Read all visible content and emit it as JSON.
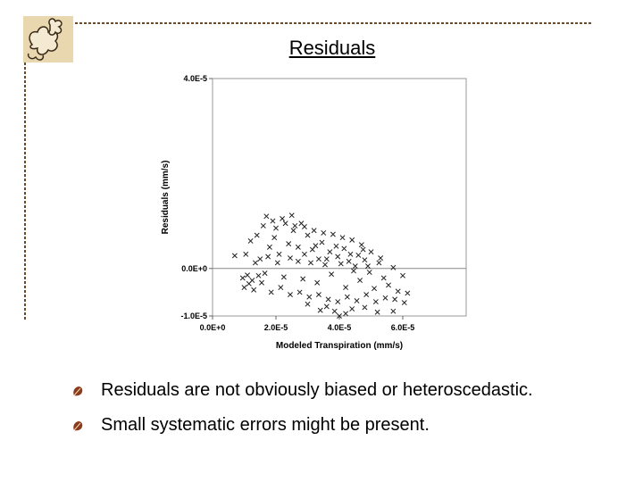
{
  "slide": {
    "title": "Residuals",
    "bullets": [
      "Residuals are not obviously biased or heteroscedastic.",
      "Small systematic errors might be present."
    ],
    "icons": {
      "logo": "leaf-cluster-logo",
      "bullet": "leaf-bullet-icon"
    },
    "colors": {
      "border": "#6b4a2a",
      "logo_fill": "#e9d7b0",
      "bullet": "#8a3b1e"
    }
  },
  "chart_data": {
    "type": "scatter",
    "xlabel": "Modeled Transpiration (mm/s)",
    "ylabel": "Residuals (mm/s)",
    "xlim": [
      0,
      8e-05
    ],
    "ylim": [
      -1e-05,
      4e-05
    ],
    "x_ticks": [
      0,
      2e-05,
      4e-05,
      6e-05
    ],
    "x_tick_labels": [
      "0.0E+0",
      "2.0E-5",
      "4.0E-5",
      "6.0E-5"
    ],
    "y_ticks": [
      -1e-05,
      0,
      4e-05
    ],
    "y_tick_labels": [
      "-1.0E-5",
      "0.0E+0",
      "4.0E-5"
    ],
    "zero_line": true,
    "grid": false,
    "marker": "x",
    "points": [
      [
        7e-06,
        2.7e-06
      ],
      [
        1.1e-05,
        -1.4e-06
      ],
      [
        1.35e-05,
        1.2e-06
      ],
      [
        1.5e-05,
        2e-06
      ],
      [
        1.65e-05,
        -1e-06
      ],
      [
        1.8e-05,
        4.5e-06
      ],
      [
        1.95e-05,
        6.5e-06
      ],
      [
        2.1e-05,
        3e-06
      ],
      [
        2.25e-05,
        -1.8e-06
      ],
      [
        2.4e-05,
        5.2e-06
      ],
      [
        2.55e-05,
        8e-06
      ],
      [
        2.7e-05,
        1.5e-06
      ],
      [
        2.85e-05,
        -2.2e-06
      ],
      [
        3e-05,
        7e-06
      ],
      [
        3.15e-05,
        4e-06
      ],
      [
        3.3e-05,
        -3e-06
      ],
      [
        3.45e-05,
        5.5e-06
      ],
      [
        3.6e-05,
        2e-06
      ],
      [
        3.75e-05,
        -1.2e-06
      ],
      [
        3.9e-05,
        4.7e-06
      ],
      [
        4.05e-05,
        1e-06
      ],
      [
        4.2e-05,
        -4e-06
      ],
      [
        4.35e-05,
        3e-06
      ],
      [
        4.5e-05,
        5e-07
      ],
      [
        4.65e-05,
        -2.5e-06
      ],
      [
        4.8e-05,
        1.8e-06
      ],
      [
        4.95e-05,
        -8e-07
      ],
      [
        5.1e-05,
        -4.2e-06
      ],
      [
        5.25e-05,
        1.2e-06
      ],
      [
        5.4e-05,
        -2e-06
      ],
      [
        5.55e-05,
        -3.5e-06
      ],
      [
        5.7e-05,
        2e-07
      ],
      [
        5.85e-05,
        -4.8e-06
      ],
      [
        6e-05,
        -1.5e-06
      ],
      [
        6.15e-05,
        -5.2e-06
      ],
      [
        1.2e-05,
        5.8e-06
      ],
      [
        1.4e-05,
        7e-06
      ],
      [
        1.6e-05,
        9e-06
      ],
      [
        2e-05,
        8.5e-06
      ],
      [
        2.3e-05,
        9.5e-06
      ],
      [
        2.6e-05,
        9e-06
      ],
      [
        2.9e-05,
        8.8e-06
      ],
      [
        3.2e-05,
        8e-06
      ],
      [
        3.5e-05,
        7.5e-06
      ],
      [
        3.8e-05,
        7.2e-06
      ],
      [
        4.1e-05,
        6.5e-06
      ],
      [
        4.4e-05,
        6e-06
      ],
      [
        4.7e-05,
        5e-06
      ],
      [
        5e-05,
        3.5e-06
      ],
      [
        5.3e-05,
        2.2e-06
      ],
      [
        1.7e-05,
        1.1e-05
      ],
      [
        1.9e-05,
        1e-05
      ],
      [
        2.2e-05,
        1.05e-05
      ],
      [
        2.5e-05,
        1.12e-05
      ],
      [
        2.8e-05,
        9.5e-06
      ],
      [
        1.05e-05,
        3e-06
      ],
      [
        9.5e-06,
        -2e-06
      ],
      [
        1e-05,
        -4e-06
      ],
      [
        1.3e-05,
        -4.5e-06
      ],
      [
        1.55e-05,
        -3e-06
      ],
      [
        1.85e-05,
        -5e-06
      ],
      [
        2.15e-05,
        -4e-06
      ],
      [
        2.45e-05,
        -5.5e-06
      ],
      [
        2.75e-05,
        -5e-06
      ],
      [
        3.05e-05,
        -6e-06
      ],
      [
        3.35e-05,
        -5.5e-06
      ],
      [
        3.65e-05,
        -6.5e-06
      ],
      [
        3.95e-05,
        -7e-06
      ],
      [
        4.25e-05,
        -6e-06
      ],
      [
        4.55e-05,
        -6.8e-06
      ],
      [
        4.85e-05,
        -5.5e-06
      ],
      [
        5.15e-05,
        -7e-06
      ],
      [
        5.45e-05,
        -6.2e-06
      ],
      [
        5.75e-05,
        -6.5e-06
      ],
      [
        6.05e-05,
        -7.2e-06
      ],
      [
        3.85e-05,
        -9e-06
      ],
      [
        3.6e-05,
        -8e-06
      ],
      [
        4.4e-05,
        -8.5e-06
      ],
      [
        5.2e-05,
        -9.2e-06
      ],
      [
        4.2e-05,
        -9.5e-06
      ],
      [
        3.4e-05,
        -8.8e-06
      ],
      [
        4.8e-05,
        -8.2e-06
      ],
      [
        5.7e-05,
        -9e-06
      ],
      [
        4e-05,
        -1e-05
      ],
      [
        3e-05,
        -7.5e-06
      ],
      [
        3.35e-05,
        2e-06
      ],
      [
        3.55e-05,
        8e-07
      ],
      [
        3.7e-05,
        3.5e-06
      ],
      [
        3.95e-05,
        2.5e-06
      ],
      [
        4.15e-05,
        4.2e-06
      ],
      [
        4.3e-05,
        1.5e-06
      ],
      [
        4.45e-05,
        -5e-07
      ],
      [
        4.6e-05,
        2.8e-06
      ],
      [
        4.75e-05,
        4e-06
      ],
      [
        4.9e-05,
        5e-07
      ],
      [
        3.1e-05,
        1.2e-06
      ],
      [
        3.25e-05,
        4.8e-06
      ],
      [
        2.9e-05,
        3e-06
      ],
      [
        2.7e-05,
        4.5e-06
      ],
      [
        2.45e-05,
        2.2e-06
      ],
      [
        2.05e-05,
        1.2e-06
      ],
      [
        1.75e-05,
        2.5e-06
      ],
      [
        1.45e-05,
        -1.5e-06
      ],
      [
        1.25e-05,
        -2.5e-06
      ],
      [
        1.15e-05,
        -3.2e-06
      ]
    ]
  }
}
